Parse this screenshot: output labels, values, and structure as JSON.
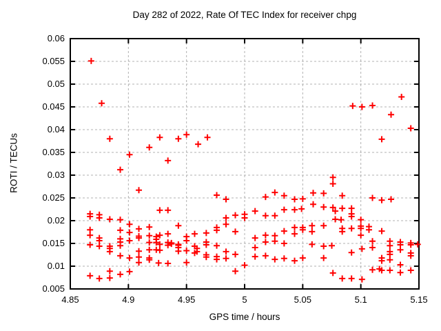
{
  "chart_data": {
    "type": "scatter",
    "title": "Day 282 of 2022, Rate Of TEC Index for receiver chpg",
    "xlabel": "GPS time / hours",
    "ylabel": "ROTI / TECUs",
    "xlim": [
      4.85,
      5.15
    ],
    "ylim": [
      0.005,
      0.06
    ],
    "xticks": [
      4.85,
      4.9,
      4.95,
      5,
      5.05,
      5.1,
      5.15
    ],
    "xtick_labels": [
      "4.85",
      "4.9",
      "4.95",
      "5",
      "5.05",
      "5.1",
      "5.15"
    ],
    "yticks": [
      0.005,
      0.01,
      0.015,
      0.02,
      0.025,
      0.03,
      0.035,
      0.04,
      0.045,
      0.05,
      0.055,
      0.06
    ],
    "ytick_labels": [
      "0.005",
      "0.01",
      "0.015",
      "0.02",
      "0.025",
      "0.03",
      "0.035",
      "0.04",
      "0.045",
      "0.05",
      "0.055",
      "0.06"
    ],
    "grid": true,
    "legend": "none",
    "marker": {
      "shape": "plus",
      "color": "#ff0000",
      "size": 9
    },
    "grid_color": "#b0b0b0",
    "border_color": "#000000",
    "series": [
      {
        "name": "ROTI",
        "points": [
          [
            4.868,
            0.0551
          ],
          [
            4.877,
            0.0458
          ],
          [
            4.884,
            0.038
          ],
          [
            4.918,
            0.0361
          ],
          [
            4.901,
            0.0345
          ],
          [
            4.893,
            0.0312
          ],
          [
            4.909,
            0.0267
          ],
          [
            4.927,
            0.0383
          ],
          [
            4.943,
            0.038
          ],
          [
            4.95,
            0.0389
          ],
          [
            4.96,
            0.0368
          ],
          [
            4.968,
            0.0383
          ],
          [
            4.934,
            0.0332
          ],
          [
            4.976,
            0.0256
          ],
          [
            4.984,
            0.0247
          ],
          [
            5.018,
            0.0252
          ],
          [
            5.026,
            0.0262
          ],
          [
            5.034,
            0.0255
          ],
          [
            5.043,
            0.0247
          ],
          [
            5.05,
            0.0248
          ],
          [
            5.059,
            0.0261
          ],
          [
            5.068,
            0.026
          ],
          [
            5.059,
            0.0236
          ],
          [
            5.068,
            0.023
          ],
          [
            5.076,
            0.0295
          ],
          [
            5.076,
            0.0281
          ],
          [
            5.084,
            0.0255
          ],
          [
            5.093,
            0.0452
          ],
          [
            5.101,
            0.045
          ],
          [
            5.11,
            0.0453
          ],
          [
            5.135,
            0.0472
          ],
          [
            5.126,
            0.0433
          ],
          [
            5.143,
            0.0403
          ],
          [
            5.118,
            0.0379
          ],
          [
            5.11,
            0.025
          ],
          [
            5.118,
            0.0245
          ],
          [
            5.126,
            0.0247
          ],
          [
            4.867,
            0.0215
          ],
          [
            4.867,
            0.0209
          ],
          [
            4.875,
            0.0213
          ],
          [
            4.875,
            0.0206
          ],
          [
            4.884,
            0.0203
          ],
          [
            4.893,
            0.0202
          ],
          [
            4.901,
            0.0192
          ],
          [
            4.867,
            0.018
          ],
          [
            4.893,
            0.0179
          ],
          [
            4.867,
            0.0168
          ],
          [
            4.875,
            0.0162
          ],
          [
            4.875,
            0.0156
          ],
          [
            4.893,
            0.016
          ],
          [
            4.867,
            0.0147
          ],
          [
            4.875,
            0.0144
          ],
          [
            4.884,
            0.0144
          ],
          [
            4.884,
            0.0139
          ],
          [
            4.893,
            0.0153
          ],
          [
            4.893,
            0.0145
          ],
          [
            4.884,
            0.0132
          ],
          [
            4.893,
            0.0123
          ],
          [
            4.901,
            0.0174
          ],
          [
            4.901,
            0.0156
          ],
          [
            4.901,
            0.0118
          ],
          [
            4.901,
            0.0088
          ],
          [
            4.867,
            0.0079
          ],
          [
            4.875,
            0.0073
          ],
          [
            4.884,
            0.0074
          ],
          [
            4.884,
            0.0089
          ],
          [
            4.893,
            0.0082
          ],
          [
            4.909,
            0.0182
          ],
          [
            4.909,
            0.0166
          ],
          [
            4.909,
            0.0162
          ],
          [
            4.909,
            0.0133
          ],
          [
            4.909,
            0.012
          ],
          [
            4.909,
            0.0108
          ],
          [
            4.918,
            0.0186
          ],
          [
            4.918,
            0.0167
          ],
          [
            4.918,
            0.0152
          ],
          [
            4.918,
            0.0136
          ],
          [
            4.918,
            0.0118
          ],
          [
            4.918,
            0.0114
          ],
          [
            4.924,
            0.0165
          ],
          [
            4.924,
            0.0159
          ],
          [
            4.924,
            0.0152
          ],
          [
            4.924,
            0.0136
          ],
          [
            4.926,
            0.0107
          ],
          [
            4.927,
            0.0223
          ],
          [
            4.934,
            0.0223
          ],
          [
            4.927,
            0.0168
          ],
          [
            4.927,
            0.0148
          ],
          [
            4.927,
            0.0135
          ],
          [
            4.934,
            0.0171
          ],
          [
            4.934,
            0.0152
          ],
          [
            4.934,
            0.0146
          ],
          [
            4.934,
            0.0106
          ],
          [
            4.937,
            0.0151
          ],
          [
            4.937,
            0.0149
          ],
          [
            4.943,
            0.0189
          ],
          [
            4.943,
            0.0148
          ],
          [
            4.943,
            0.0146
          ],
          [
            4.943,
            0.0141
          ],
          [
            4.943,
            0.0133
          ],
          [
            4.95,
            0.0165
          ],
          [
            4.95,
            0.0156
          ],
          [
            4.95,
            0.0134
          ],
          [
            4.95,
            0.0108
          ],
          [
            4.957,
            0.0171
          ],
          [
            4.957,
            0.0144
          ],
          [
            4.957,
            0.0129
          ],
          [
            4.959,
            0.0139
          ],
          [
            4.959,
            0.0132
          ],
          [
            4.967,
            0.0173
          ],
          [
            4.967,
            0.0153
          ],
          [
            4.967,
            0.0147
          ],
          [
            4.967,
            0.0125
          ],
          [
            4.967,
            0.012
          ],
          [
            4.976,
            0.0185
          ],
          [
            4.976,
            0.0179
          ],
          [
            4.976,
            0.0145
          ],
          [
            4.976,
            0.0121
          ],
          [
            4.976,
            0.0115
          ],
          [
            4.984,
            0.0206
          ],
          [
            4.984,
            0.0192
          ],
          [
            4.984,
            0.0132
          ],
          [
            4.984,
            0.0117
          ],
          [
            4.992,
            0.0212
          ],
          [
            4.992,
            0.0176
          ],
          [
            4.992,
            0.0126
          ],
          [
            4.992,
            0.0089
          ],
          [
            5.0,
            0.0214
          ],
          [
            5.0,
            0.0206
          ],
          [
            5.0,
            0.0102
          ],
          [
            5.009,
            0.0221
          ],
          [
            5.018,
            0.0211
          ],
          [
            5.026,
            0.0211
          ],
          [
            5.034,
            0.0224
          ],
          [
            5.043,
            0.0224
          ],
          [
            5.049,
            0.0226
          ],
          [
            5.043,
            0.0185
          ],
          [
            5.043,
            0.0171
          ],
          [
            5.05,
            0.0185
          ],
          [
            5.05,
            0.018
          ],
          [
            5.058,
            0.0189
          ],
          [
            5.058,
            0.0176
          ],
          [
            5.068,
            0.0189
          ],
          [
            5.034,
            0.0177
          ],
          [
            5.009,
            0.0162
          ],
          [
            5.018,
            0.0168
          ],
          [
            5.026,
            0.0167
          ],
          [
            5.026,
            0.0155
          ],
          [
            5.018,
            0.0153
          ],
          [
            5.009,
            0.0141
          ],
          [
            5.034,
            0.015
          ],
          [
            5.058,
            0.0148
          ],
          [
            5.068,
            0.0144
          ],
          [
            5.009,
            0.0121
          ],
          [
            5.018,
            0.0123
          ],
          [
            5.026,
            0.0115
          ],
          [
            5.034,
            0.0117
          ],
          [
            5.043,
            0.0112
          ],
          [
            5.05,
            0.0118
          ],
          [
            5.068,
            0.0118
          ],
          [
            5.075,
            0.0145
          ],
          [
            5.076,
            0.0085
          ],
          [
            5.076,
            0.0229
          ],
          [
            5.084,
            0.0227
          ],
          [
            5.078,
            0.0221
          ],
          [
            5.092,
            0.0227
          ],
          [
            5.092,
            0.0215
          ],
          [
            5.092,
            0.0209
          ],
          [
            5.078,
            0.0203
          ],
          [
            5.083,
            0.0202
          ],
          [
            5.1,
            0.0202
          ],
          [
            5.1,
            0.0188
          ],
          [
            5.1,
            0.0183
          ],
          [
            5.1,
            0.0168
          ],
          [
            5.084,
            0.0183
          ],
          [
            5.084,
            0.0176
          ],
          [
            5.092,
            0.0183
          ],
          [
            5.107,
            0.0187
          ],
          [
            5.107,
            0.018
          ],
          [
            5.118,
            0.0177
          ],
          [
            5.11,
            0.0155
          ],
          [
            5.11,
            0.0141
          ],
          [
            5.101,
            0.0138
          ],
          [
            5.092,
            0.013
          ],
          [
            5.118,
            0.0118
          ],
          [
            5.118,
            0.0112
          ],
          [
            5.125,
            0.0155
          ],
          [
            5.125,
            0.0145
          ],
          [
            5.125,
            0.0132
          ],
          [
            5.125,
            0.0126
          ],
          [
            5.125,
            0.0114
          ],
          [
            5.134,
            0.0153
          ],
          [
            5.134,
            0.0147
          ],
          [
            5.134,
            0.0136
          ],
          [
            5.143,
            0.0151
          ],
          [
            5.143,
            0.0147
          ],
          [
            5.149,
            0.0148
          ],
          [
            5.143,
            0.0129
          ],
          [
            5.143,
            0.0123
          ],
          [
            5.134,
            0.0103
          ],
          [
            5.134,
            0.0086
          ],
          [
            5.143,
            0.0091
          ],
          [
            5.11,
            0.0092
          ],
          [
            5.116,
            0.0094
          ],
          [
            5.118,
            0.0091
          ],
          [
            5.125,
            0.0091
          ],
          [
            5.101,
            0.0071
          ],
          [
            5.084,
            0.0073
          ],
          [
            5.092,
            0.0073
          ]
        ]
      }
    ]
  }
}
